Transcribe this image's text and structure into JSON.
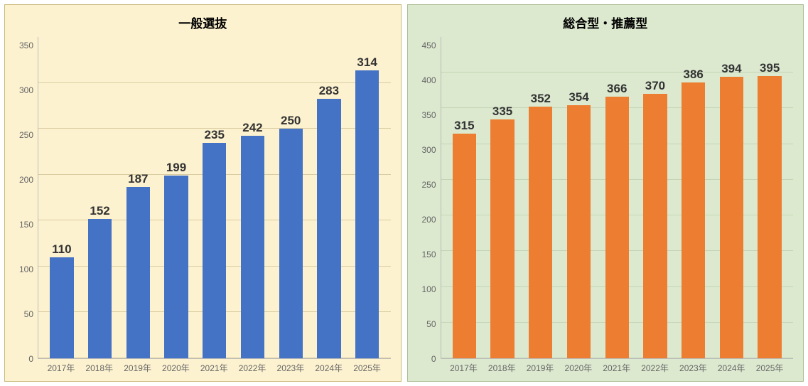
{
  "left_chart": {
    "type": "bar",
    "title": "一般選抜",
    "title_fontsize": 17,
    "background_color": "#fdf2d0",
    "border_color": "#c9b97a",
    "grid_color": "#d9cca0",
    "axis_text_color": "#666666",
    "bar_color": "#4472c4",
    "value_label_color": "#333333",
    "value_label_fontsize": 17,
    "ylim": [
      0,
      350
    ],
    "ytick_step": 50,
    "yticks": [
      0,
      50,
      100,
      150,
      200,
      250,
      300,
      350
    ],
    "categories": [
      "2017年",
      "2018年",
      "2019年",
      "2020年",
      "2021年",
      "2022年",
      "2023年",
      "2024年",
      "2025年"
    ],
    "values": [
      110,
      152,
      187,
      199,
      235,
      242,
      250,
      283,
      314
    ],
    "bar_width_ratio": 0.62
  },
  "right_chart": {
    "type": "bar",
    "title": "総合型・推薦型",
    "title_fontsize": 17,
    "background_color": "#dce9cf",
    "border_color": "#a9bd93",
    "grid_color": "#c4d4b4",
    "axis_text_color": "#666666",
    "bar_color": "#ed7d31",
    "value_label_color": "#333333",
    "value_label_fontsize": 17,
    "ylim": [
      0,
      450
    ],
    "ytick_step": 50,
    "yticks": [
      0,
      50,
      100,
      150,
      200,
      250,
      300,
      350,
      400,
      450
    ],
    "categories": [
      "2017年",
      "2018年",
      "2019年",
      "2020年",
      "2021年",
      "2022年",
      "2023年",
      "2024年",
      "2025年"
    ],
    "values": [
      315,
      335,
      352,
      354,
      366,
      370,
      386,
      394,
      395
    ],
    "bar_width_ratio": 0.62
  }
}
